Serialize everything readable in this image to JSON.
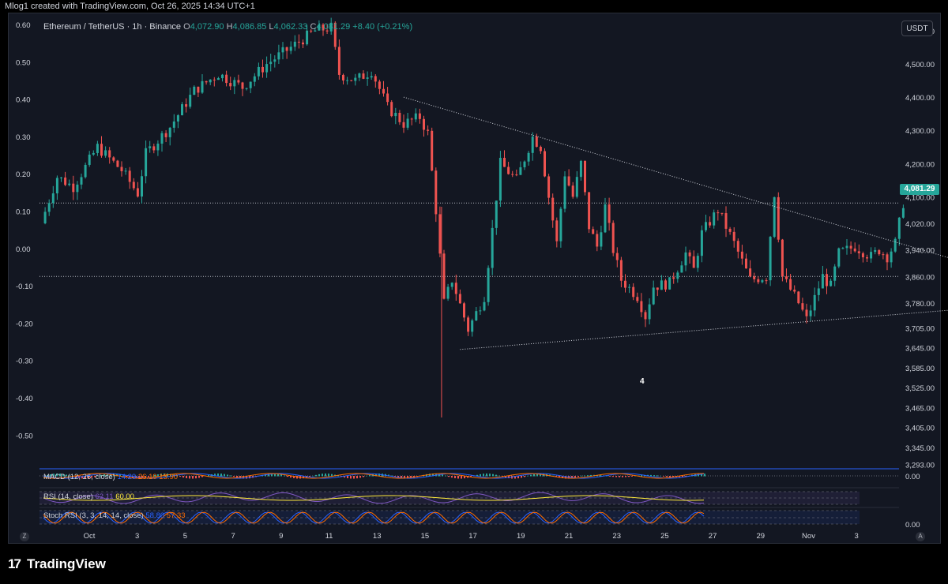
{
  "header": {
    "attribution": "Mlog1 created with TradingView.com, Oct 26, 2025 14:34 UTC+1"
  },
  "symbol": {
    "name": "Ethereum / TetherUS · 1h · Binance",
    "o_label": "O",
    "o": "4,072.90",
    "h_label": "H",
    "h": "4,086.85",
    "l_label": "L",
    "l": "4,062.33",
    "c_label": "C",
    "c": "4,081.29",
    "change": "+8.40 (+0.21%)"
  },
  "currency_button": "USDT",
  "last_price_tag": "4,081.29",
  "colors": {
    "up": "#26a69a",
    "down": "#ef5350",
    "bg": "#131722",
    "grid": "#1e222d",
    "text": "#d1d4dc"
  },
  "chart_data": {
    "type": "candlestick",
    "left_axis_ticks": [
      "0.60",
      "0.50",
      "0.40",
      "0.30",
      "0.20",
      "0.10",
      "0.00",
      "-0.10",
      "-0.20",
      "-0.30",
      "-0.40",
      "-0.50"
    ],
    "right_axis_ticks": [
      "4,600.00",
      "4,500.00",
      "4,400.00",
      "4,300.00",
      "4,200.00",
      "4,100.00",
      "4,020.00",
      "3,940.00",
      "3,860.00",
      "3,780.00",
      "3,705.00",
      "3,645.00",
      "3,585.00",
      "3,525.00",
      "3,465.00",
      "3,405.00",
      "3,345.00",
      "3,293.00"
    ],
    "x_ticks": [
      "Oct",
      "3",
      "5",
      "7",
      "9",
      "11",
      "13",
      "15",
      "17",
      "19",
      "21",
      "23",
      "25",
      "27",
      "29",
      "Nov",
      "3"
    ],
    "annotation": "4",
    "close_path": [
      [
        0,
        4020
      ],
      [
        2,
        4160
      ],
      [
        4,
        4130
      ],
      [
        7,
        4250
      ],
      [
        10,
        4180
      ],
      [
        12,
        4110
      ],
      [
        13,
        4230
      ],
      [
        16,
        4310
      ],
      [
        19,
        4420
      ],
      [
        22,
        4470
      ],
      [
        25,
        4430
      ],
      [
        28,
        4500
      ],
      [
        31,
        4550
      ],
      [
        34,
        4600
      ],
      [
        36,
        4610
      ],
      [
        37,
        4470
      ],
      [
        39,
        4450
      ],
      [
        41,
        4480
      ],
      [
        43,
        4370
      ],
      [
        45,
        4320
      ],
      [
        47,
        4340
      ],
      [
        48,
        4290
      ],
      [
        49,
        4060
      ],
      [
        50,
        3780
      ],
      [
        51,
        3850
      ],
      [
        53,
        3700
      ],
      [
        55,
        3800
      ],
      [
        57,
        4200
      ],
      [
        59,
        4150
      ],
      [
        61,
        4280
      ],
      [
        62,
        4250
      ],
      [
        63,
        4100
      ],
      [
        64,
        3960
      ],
      [
        65,
        4170
      ],
      [
        66,
        4100
      ],
      [
        67,
        4200
      ],
      [
        68,
        4010
      ],
      [
        69,
        3950
      ],
      [
        70,
        4070
      ],
      [
        71,
        3940
      ],
      [
        72,
        3850
      ],
      [
        74,
        3800
      ],
      [
        75,
        3740
      ],
      [
        76,
        3830
      ],
      [
        78,
        3840
      ],
      [
        80,
        3930
      ],
      [
        81,
        3880
      ],
      [
        82,
        3990
      ],
      [
        84,
        4060
      ],
      [
        86,
        3960
      ],
      [
        88,
        3850
      ],
      [
        90,
        3860
      ],
      [
        91,
        4110
      ],
      [
        92,
        3860
      ],
      [
        94,
        3780
      ],
      [
        95,
        3730
      ],
      [
        97,
        3860
      ],
      [
        98,
        3830
      ],
      [
        99,
        3930
      ],
      [
        101,
        3950
      ],
      [
        103,
        3920
      ],
      [
        104,
        3940
      ],
      [
        105,
        3920
      ],
      [
        106,
        3960
      ],
      [
        107,
        4081
      ]
    ],
    "price_min": 3290,
    "price_max": 4650,
    "horizontal_lines": [
      4081.29,
      3860
    ],
    "trendlines": [
      {
        "from": [
          45,
          4400
        ],
        "to": [
          131,
          3785
        ]
      },
      {
        "from": [
          52,
          3640
        ],
        "to": [
          129,
          3790
        ]
      }
    ]
  },
  "indicators": {
    "macd": {
      "label": "MACD (12, 26, close)",
      "v1": "14.29",
      "v2": "26.19",
      "v3": "13.90",
      "axis": "0.00"
    },
    "rsi": {
      "label": "RSI (14, close)",
      "v1": "62.11",
      "v2": "60.00"
    },
    "stoch": {
      "label": "Stoch RSI (3, 3, 14, 14, close)",
      "v1": "58.80",
      "v2": "57.33",
      "axis": "0.00"
    }
  },
  "zones": {
    "left": "Z",
    "right": "A"
  },
  "footer": {
    "logo_mark": "17",
    "logo_text": "TradingView"
  }
}
